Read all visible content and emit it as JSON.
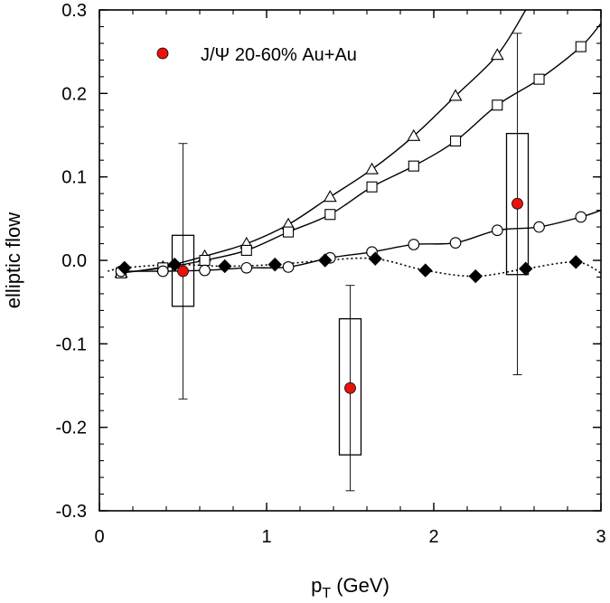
{
  "chart_data": {
    "type": "scatter",
    "title": "",
    "xlabel": "p",
    "xlabel_subscript": "T",
    "xlabel_unit": " (GeV)",
    "ylabel": "elliptic flow",
    "xlim": [
      0,
      3
    ],
    "ylim": [
      -0.3,
      0.3
    ],
    "xticks": [
      0,
      1,
      2,
      3
    ],
    "xtick_labels": [
      "0",
      "1",
      "2",
      "3"
    ],
    "yticks": [
      -0.3,
      -0.2,
      -0.1,
      0.0,
      0.1,
      0.2,
      0.3
    ],
    "ytick_labels": [
      "-0.3",
      "-0.2",
      "-0.1",
      "0.0",
      "0.1",
      "0.2",
      "0.3"
    ],
    "grid": false,
    "legend": {
      "position": "top-left",
      "entries": [
        {
          "label": "J/Ψ 20-60% Au+Au",
          "marker": "circle",
          "color": "#e8120c"
        }
      ]
    },
    "series": [
      {
        "name": "J/Ψ 20-60% Au+Au",
        "kind": "data",
        "marker": "circle",
        "color": "#e8120c",
        "x": [
          0.5,
          1.5,
          2.5
        ],
        "y": [
          -0.013,
          -0.153,
          0.068
        ],
        "stat_err_low": [
          -0.166,
          -0.276,
          -0.137
        ],
        "stat_err_high": [
          0.14,
          -0.03,
          0.272
        ],
        "sys_low": [
          -0.055,
          -0.233,
          -0.017
        ],
        "sys_high": [
          0.03,
          -0.07,
          0.152
        ]
      },
      {
        "name": "model (triangles)",
        "kind": "model",
        "marker": "triangle",
        "line": "solid",
        "x": [
          0.13,
          0.38,
          0.63,
          0.88,
          1.13,
          1.38,
          1.63,
          1.88,
          2.13,
          2.38
        ],
        "y": [
          -0.015,
          -0.008,
          0.005,
          0.02,
          0.043,
          0.076,
          0.109,
          0.149,
          0.197,
          0.246
        ],
        "curve_end": [
          2.55,
          0.3
        ]
      },
      {
        "name": "model (squares)",
        "kind": "model",
        "marker": "square",
        "line": "solid",
        "x": [
          0.13,
          0.38,
          0.63,
          0.88,
          1.13,
          1.38,
          1.63,
          1.88,
          2.13,
          2.38,
          2.63,
          2.88
        ],
        "y": [
          -0.015,
          -0.009,
          0.0,
          0.012,
          0.034,
          0.055,
          0.088,
          0.113,
          0.143,
          0.186,
          0.217,
          0.256
        ],
        "curve_end": [
          3.0,
          0.284
        ]
      },
      {
        "name": "model (open circles)",
        "kind": "model",
        "marker": "circle-open",
        "line": "solid",
        "x": [
          0.13,
          0.38,
          0.63,
          0.88,
          1.13,
          1.38,
          1.63,
          1.88,
          2.13,
          2.38,
          2.63,
          2.88
        ],
        "y": [
          -0.013,
          -0.013,
          -0.012,
          -0.009,
          -0.008,
          0.003,
          0.01,
          0.019,
          0.021,
          0.036,
          0.04,
          0.052
        ],
        "curve_end": [
          3.0,
          0.06
        ]
      },
      {
        "name": "model (diamonds)",
        "kind": "model",
        "marker": "diamond",
        "line": "dotted",
        "x": [
          0.15,
          0.45,
          0.75,
          1.05,
          1.35,
          1.65,
          1.95,
          2.25,
          2.55,
          2.85
        ],
        "y": [
          -0.009,
          -0.005,
          -0.007,
          -0.005,
          0.0,
          0.002,
          -0.012,
          -0.019,
          -0.01,
          -0.002
        ],
        "curve_start": [
          0.05,
          -0.013
        ],
        "curve_end": [
          3.0,
          -0.015
        ]
      }
    ]
  }
}
